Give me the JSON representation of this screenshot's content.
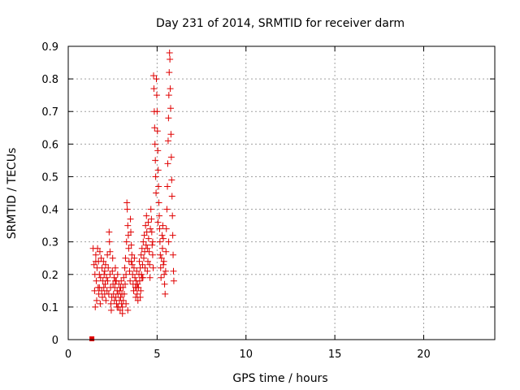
{
  "chart_data": {
    "type": "scatter",
    "title": "Day 231 of 2014, SRMTID for receiver darm",
    "xlabel": "GPS time / hours",
    "ylabel": "SRMTID / TECUs",
    "xlim": [
      0,
      24
    ],
    "ylim": [
      0,
      0.9
    ],
    "xticks": [
      0,
      5,
      10,
      15,
      20
    ],
    "xtick_labels": [
      "0",
      "5",
      "10",
      "15",
      "20"
    ],
    "yticks": [
      0,
      0.1,
      0.2,
      0.3,
      0.4,
      0.5,
      0.6,
      0.7,
      0.8,
      0.9
    ],
    "ytick_labels": [
      "0",
      "0.1",
      "0.2",
      "0.3",
      "0.4",
      "0.5",
      "0.6",
      "0.7",
      "0.8",
      "0.9"
    ],
    "grid": true,
    "marker": "plus",
    "color": "#e00000",
    "extra_marker": {
      "shape": "square",
      "x": 1.33,
      "y": 0.0
    },
    "series": [
      {
        "name": "SRMTID",
        "points": [
          [
            1.4,
            0.28
          ],
          [
            1.45,
            0.23
          ],
          [
            1.48,
            0.15
          ],
          [
            1.5,
            0.2
          ],
          [
            1.52,
            0.1
          ],
          [
            1.55,
            0.26
          ],
          [
            1.58,
            0.18
          ],
          [
            1.6,
            0.12
          ],
          [
            1.62,
            0.22
          ],
          [
            1.65,
            0.28
          ],
          [
            1.68,
            0.16
          ],
          [
            1.7,
            0.24
          ],
          [
            1.72,
            0.14
          ],
          [
            1.75,
            0.2
          ],
          [
            1.78,
            0.27
          ],
          [
            1.8,
            0.11
          ],
          [
            1.82,
            0.19
          ],
          [
            1.85,
            0.25
          ],
          [
            1.88,
            0.15
          ],
          [
            1.9,
            0.22
          ],
          [
            1.92,
            0.13
          ],
          [
            1.95,
            0.18
          ],
          [
            1.98,
            0.24
          ],
          [
            2.0,
            0.16
          ],
          [
            2.02,
            0.2
          ],
          [
            2.05,
            0.14
          ],
          [
            2.08,
            0.17
          ],
          [
            2.1,
            0.23
          ],
          [
            2.12,
            0.12
          ],
          [
            2.15,
            0.19
          ],
          [
            2.18,
            0.15
          ],
          [
            2.2,
            0.26
          ],
          [
            2.22,
            0.18
          ],
          [
            2.25,
            0.22
          ],
          [
            2.28,
            0.14
          ],
          [
            2.3,
            0.33
          ],
          [
            2.32,
            0.3
          ],
          [
            2.35,
            0.2
          ],
          [
            2.38,
            0.16
          ],
          [
            2.4,
            0.11
          ],
          [
            2.42,
            0.09
          ],
          [
            2.45,
            0.13
          ],
          [
            2.48,
            0.21
          ],
          [
            2.5,
            0.25
          ],
          [
            2.52,
            0.17
          ],
          [
            2.55,
            0.14
          ],
          [
            2.58,
            0.19
          ],
          [
            2.6,
            0.12
          ],
          [
            2.62,
            0.16
          ],
          [
            2.65,
            0.22
          ],
          [
            2.68,
            0.13
          ],
          [
            2.7,
            0.18
          ],
          [
            2.72,
            0.11
          ],
          [
            2.75,
            0.15
          ],
          [
            2.78,
            0.2
          ],
          [
            2.8,
            0.14
          ],
          [
            2.82,
            0.1
          ],
          [
            2.85,
            0.17
          ],
          [
            2.88,
            0.12
          ],
          [
            2.9,
            0.15
          ],
          [
            2.92,
            0.09
          ],
          [
            2.95,
            0.13
          ],
          [
            2.98,
            0.18
          ],
          [
            3.0,
            0.11
          ],
          [
            3.02,
            0.14
          ],
          [
            3.05,
            0.1
          ],
          [
            3.08,
            0.16
          ],
          [
            3.1,
            0.12
          ],
          [
            3.12,
            0.19
          ],
          [
            3.15,
            0.14
          ],
          [
            3.18,
            0.22
          ],
          [
            3.2,
            0.17
          ],
          [
            3.22,
            0.25
          ],
          [
            3.25,
            0.2
          ],
          [
            3.28,
            0.3
          ],
          [
            3.3,
            0.42
          ],
          [
            3.32,
            0.4
          ],
          [
            3.35,
            0.35
          ],
          [
            3.38,
            0.32
          ],
          [
            3.4,
            0.28
          ],
          [
            3.42,
            0.24
          ],
          [
            3.45,
            0.21
          ],
          [
            3.48,
            0.18
          ],
          [
            3.5,
            0.37
          ],
          [
            3.52,
            0.33
          ],
          [
            3.55,
            0.29
          ],
          [
            3.58,
            0.26
          ],
          [
            3.6,
            0.23
          ],
          [
            3.62,
            0.2
          ],
          [
            3.65,
            0.17
          ],
          [
            3.68,
            0.15
          ],
          [
            3.7,
            0.22
          ],
          [
            3.72,
            0.25
          ],
          [
            3.75,
            0.19
          ],
          [
            3.78,
            0.16
          ],
          [
            3.8,
            0.13
          ],
          [
            3.82,
            0.18
          ],
          [
            3.85,
            0.21
          ],
          [
            3.88,
            0.14
          ],
          [
            3.9,
            0.17
          ],
          [
            3.92,
            0.12
          ],
          [
            3.95,
            0.16
          ],
          [
            3.98,
            0.2
          ],
          [
            4.0,
            0.24
          ],
          [
            4.02,
            0.18
          ],
          [
            4.05,
            0.22
          ],
          [
            4.08,
            0.15
          ],
          [
            4.1,
            0.26
          ],
          [
            4.12,
            0.2
          ],
          [
            4.15,
            0.28
          ],
          [
            4.18,
            0.23
          ],
          [
            4.2,
            0.19
          ],
          [
            4.22,
            0.3
          ],
          [
            4.25,
            0.25
          ],
          [
            4.28,
            0.32
          ],
          [
            4.3,
            0.27
          ],
          [
            4.32,
            0.22
          ],
          [
            4.35,
            0.35
          ],
          [
            4.38,
            0.29
          ],
          [
            4.4,
            0.38
          ],
          [
            4.42,
            0.33
          ],
          [
            4.45,
            0.28
          ],
          [
            4.48,
            0.24
          ],
          [
            4.5,
            0.36
          ],
          [
            4.52,
            0.31
          ],
          [
            4.55,
            0.27
          ],
          [
            4.58,
            0.23
          ],
          [
            4.6,
            0.19
          ],
          [
            4.62,
            0.34
          ],
          [
            4.65,
            0.4
          ],
          [
            4.68,
            0.37
          ],
          [
            4.7,
            0.33
          ],
          [
            4.72,
            0.29
          ],
          [
            4.75,
            0.26
          ],
          [
            4.78,
            0.22
          ],
          [
            4.8,
            0.81
          ],
          [
            4.82,
            0.77
          ],
          [
            4.84,
            0.7
          ],
          [
            4.86,
            0.65
          ],
          [
            4.88,
            0.6
          ],
          [
            4.9,
            0.55
          ],
          [
            4.92,
            0.5
          ],
          [
            4.94,
            0.45
          ],
          [
            4.96,
            0.8
          ],
          [
            4.98,
            0.75
          ],
          [
            5.0,
            0.7
          ],
          [
            5.02,
            0.64
          ],
          [
            5.04,
            0.58
          ],
          [
            5.06,
            0.52
          ],
          [
            5.08,
            0.47
          ],
          [
            5.1,
            0.42
          ],
          [
            5.12,
            0.38
          ],
          [
            5.14,
            0.34
          ],
          [
            5.16,
            0.3
          ],
          [
            5.18,
            0.26
          ],
          [
            5.2,
            0.22
          ],
          [
            5.22,
            0.19
          ],
          [
            5.25,
            0.25
          ],
          [
            5.28,
            0.32
          ],
          [
            5.3,
            0.28
          ],
          [
            5.32,
            0.35
          ],
          [
            5.35,
            0.31
          ],
          [
            5.38,
            0.24
          ],
          [
            5.4,
            0.2
          ],
          [
            5.42,
            0.17
          ],
          [
            5.45,
            0.14
          ],
          [
            5.48,
            0.21
          ],
          [
            5.5,
            0.27
          ],
          [
            5.52,
            0.34
          ],
          [
            5.55,
            0.4
          ],
          [
            5.58,
            0.47
          ],
          [
            5.6,
            0.54
          ],
          [
            5.62,
            0.61
          ],
          [
            5.64,
            0.68
          ],
          [
            5.66,
            0.75
          ],
          [
            5.68,
            0.82
          ],
          [
            5.7,
            0.88
          ],
          [
            5.72,
            0.86
          ],
          [
            5.74,
            0.77
          ],
          [
            5.76,
            0.71
          ],
          [
            5.78,
            0.63
          ],
          [
            5.8,
            0.56
          ],
          [
            5.82,
            0.49
          ],
          [
            5.84,
            0.44
          ],
          [
            5.86,
            0.38
          ],
          [
            5.88,
            0.32
          ],
          [
            5.9,
            0.26
          ],
          [
            5.92,
            0.21
          ],
          [
            5.94,
            0.18
          ],
          [
            1.55,
            0.24
          ],
          [
            1.75,
            0.16
          ],
          [
            2.05,
            0.21
          ],
          [
            2.35,
            0.27
          ],
          [
            2.65,
            0.18
          ],
          [
            2.95,
            0.16
          ],
          [
            3.25,
            0.11
          ],
          [
            3.55,
            0.24
          ],
          [
            3.85,
            0.16
          ],
          [
            4.15,
            0.19
          ],
          [
            4.45,
            0.21
          ],
          [
            4.75,
            0.3
          ],
          [
            5.05,
            0.36
          ],
          [
            5.35,
            0.23
          ],
          [
            5.65,
            0.3
          ],
          [
            3.35,
            0.09
          ],
          [
            3.05,
            0.08
          ],
          [
            2.75,
            0.1
          ],
          [
            4.05,
            0.13
          ]
        ]
      }
    ]
  }
}
